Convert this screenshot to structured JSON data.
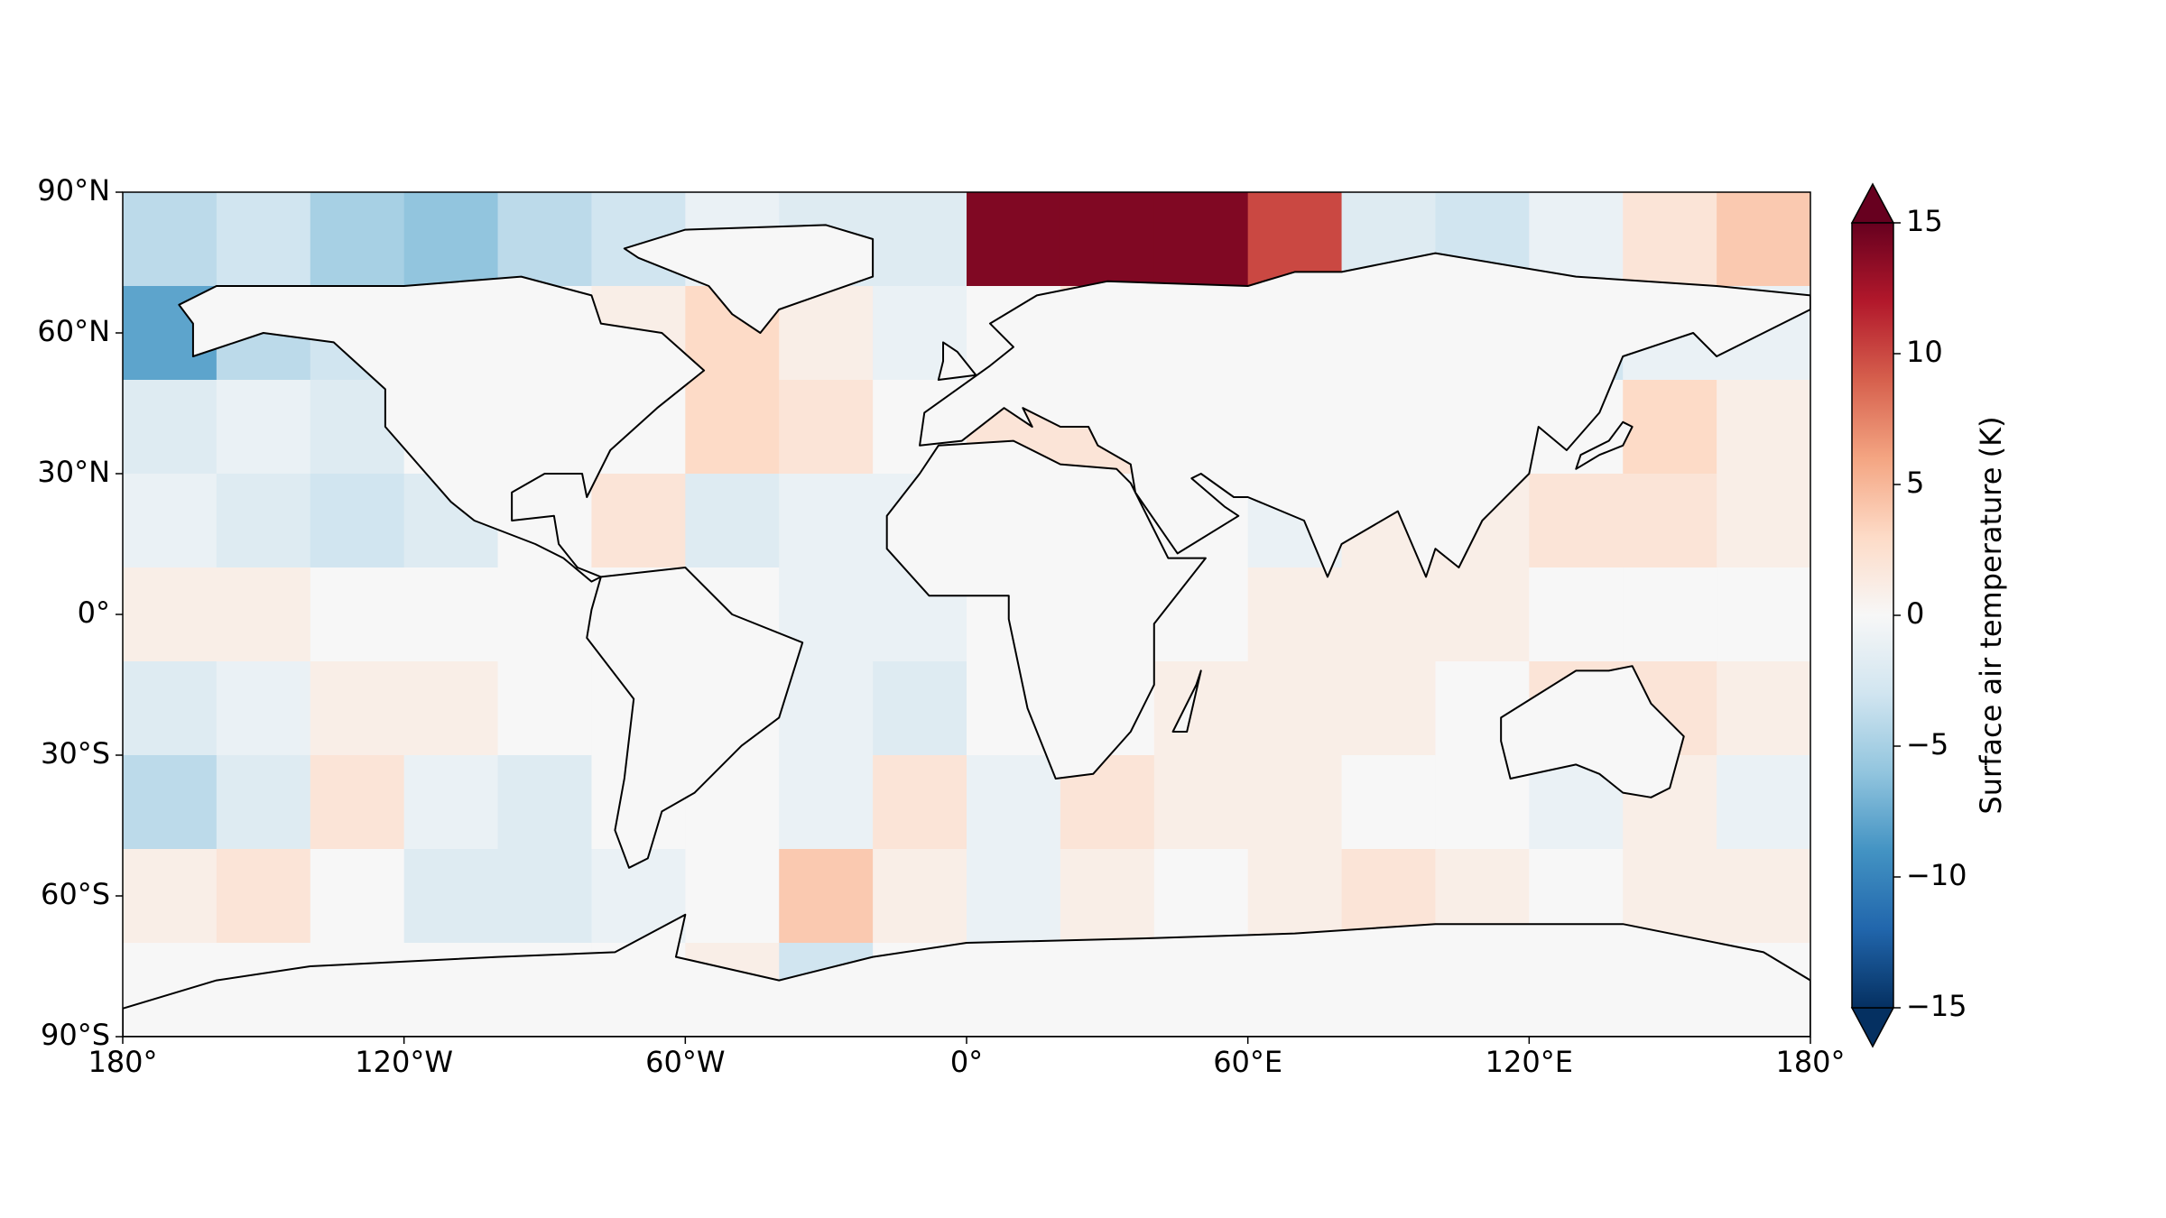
{
  "chart_data": {
    "type": "map",
    "projection": "plate-carree",
    "colorbar_label": "Surface air temperature (K)",
    "colormap": "RdBu_r",
    "clim": [
      -15,
      15
    ],
    "cticks": [
      {
        "value": -15,
        "label": "−15"
      },
      {
        "value": -10,
        "label": "−10"
      },
      {
        "value": -5,
        "label": "−5"
      },
      0,
      5,
      10,
      15
    ],
    "xlim": [
      -180,
      180
    ],
    "xticks": [
      {
        "value": -180,
        "label": "180°"
      },
      {
        "value": -120,
        "label": "120°W"
      },
      {
        "value": -60,
        "label": "60°W"
      },
      {
        "value": 0,
        "label": "0°"
      },
      {
        "value": 60,
        "label": "60°E"
      },
      {
        "value": 120,
        "label": "120°E"
      },
      {
        "value": 180,
        "label": "180°"
      }
    ],
    "ylim": [
      -90,
      90
    ],
    "yticks": [
      {
        "value": 90,
        "label": "90°N"
      },
      {
        "value": 60,
        "label": "60°N"
      },
      {
        "value": 30,
        "label": "30°N"
      },
      {
        "value": 0,
        "label": "0°"
      },
      {
        "value": -30,
        "label": "30°S"
      },
      {
        "value": -60,
        "label": "60°S"
      },
      {
        "value": -90,
        "label": "90°S"
      }
    ],
    "values": [
      [
        -4,
        -3,
        -5,
        -6,
        -4,
        -3,
        -1,
        -2,
        -2,
        14,
        14,
        14,
        10,
        -2,
        -3,
        -1,
        2,
        4
      ],
      [
        -8,
        -4,
        -3,
        0,
        0,
        1,
        3,
        1,
        -1,
        0,
        2,
        0,
        0,
        0,
        0,
        -3,
        -1,
        -1
      ],
      [
        -2,
        -1,
        -2,
        0,
        0,
        0,
        3,
        2,
        0,
        2,
        2,
        0,
        0,
        0,
        0,
        0,
        3,
        1
      ],
      [
        -1,
        -2,
        -3,
        -2,
        0,
        2,
        -2,
        -1,
        -1,
        0,
        0,
        0,
        -1,
        1,
        1,
        2,
        2,
        1
      ],
      [
        1,
        1,
        0,
        0,
        0,
        0,
        0,
        -1,
        -1,
        0,
        0,
        0,
        1,
        1,
        1,
        0,
        0,
        0
      ],
      [
        -2,
        -1,
        1,
        1,
        0,
        0,
        0,
        -1,
        -2,
        0,
        0,
        1,
        1,
        1,
        0,
        2,
        2,
        1
      ],
      [
        -4,
        -2,
        2,
        -1,
        -2,
        0,
        0,
        -1,
        2,
        -1,
        2,
        1,
        1,
        0,
        0,
        -1,
        1,
        -1
      ],
      [
        1,
        2,
        0,
        -2,
        -2,
        -1,
        0,
        4,
        1,
        -1,
        1,
        0,
        1,
        2,
        1,
        0,
        1,
        1
      ],
      [
        0,
        0,
        0,
        0,
        0,
        0,
        1,
        -3,
        0,
        0,
        0,
        0,
        0,
        0,
        0,
        0,
        0,
        0
      ]
    ]
  }
}
